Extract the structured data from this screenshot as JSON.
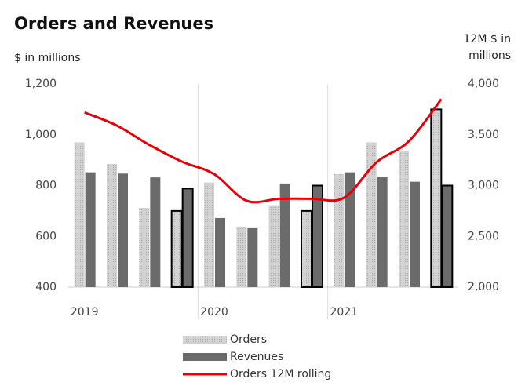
{
  "chart_data": {
    "type": "bar-line",
    "title": "Orders and Revenues",
    "y_label": "$ in millions",
    "y2_label": "12M $ in millions",
    "categories": [
      "2019",
      null,
      null,
      null,
      "2020",
      null,
      null,
      null,
      "2021",
      null,
      null,
      null
    ],
    "series": [
      {
        "name": "Orders",
        "type": "bar",
        "color": "#c4c4c4",
        "values": [
          970,
          885,
          712,
          700,
          812,
          638,
          722,
          700,
          845,
          970,
          935,
          1100
        ]
      },
      {
        "name": "Revenues",
        "type": "bar",
        "color": "#6b6b6b",
        "values": [
          852,
          847,
          832,
          788,
          672,
          635,
          808,
          800,
          852,
          835,
          815,
          800
        ]
      },
      {
        "name": "Orders 12M rolling",
        "type": "line",
        "axis": "y2",
        "color": "#e5000a",
        "values": [
          3720,
          3590,
          3400,
          3236,
          3112,
          2850,
          2870,
          2870,
          2880,
          3228,
          3436,
          3850
        ]
      }
    ],
    "ylim": [
      400,
      1200
    ],
    "yticks": [
      400,
      600,
      800,
      {
        "value": 1000,
        "label": "1,000"
      },
      {
        "value": 1200,
        "label": "1,200"
      }
    ],
    "y2lim": [
      2000,
      4000
    ],
    "y2ticks": [
      {
        "value": 2000,
        "label": "2,000"
      },
      {
        "value": 2500,
        "label": "2,500"
      },
      {
        "value": 3000,
        "label": "3,000"
      },
      {
        "value": 3500,
        "label": "3,500"
      },
      {
        "value": 4000,
        "label": "4,000"
      }
    ],
    "legend": "bottom"
  }
}
